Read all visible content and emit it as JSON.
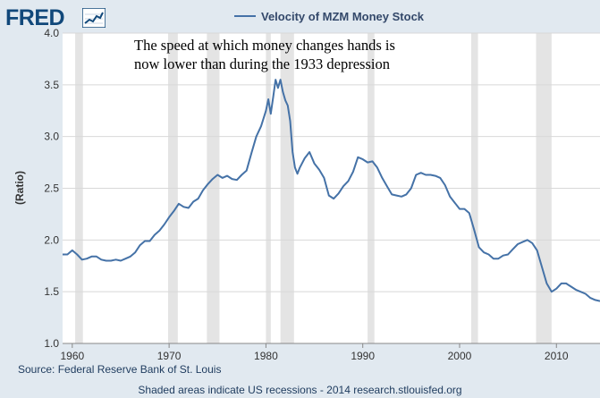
{
  "logo": {
    "text": "FRED",
    "icon": "fred-sparkline-icon"
  },
  "colors": {
    "background": "#e1e9f0",
    "plot_area": "#ffffff",
    "series": "#4572a7",
    "recession": "#e4e4e4",
    "grid": "#d8d8d8",
    "logo": "#11487a"
  },
  "annotation": {
    "line1": "The speed at which money changes hands is",
    "line2": "now lower than during the 1933 depression"
  },
  "source": "Source: Federal Reserve Bank of St. Louis",
  "footnote": "Shaded areas indicate US recessions - 2014 research.stlouisfed.org",
  "chart_data": {
    "type": "line",
    "title": "",
    "xlabel": "",
    "ylabel": "(Ratio)",
    "xlim": [
      1959.0,
      2014.5
    ],
    "ylim": [
      1.0,
      4.0
    ],
    "y_ticks": [
      "1.0",
      "1.5",
      "2.0",
      "2.5",
      "3.0",
      "3.5",
      "4.0"
    ],
    "x_ticks": [
      "1960",
      "1970",
      "1980",
      "1990",
      "2000",
      "2010"
    ],
    "grid": true,
    "legend": "top-center",
    "recessions": [
      [
        1960.3,
        1961.1
      ],
      [
        1969.9,
        1970.9
      ],
      [
        1973.9,
        1975.2
      ],
      [
        1980.0,
        1980.5
      ],
      [
        1981.5,
        1982.9
      ],
      [
        1990.5,
        1991.2
      ],
      [
        2001.2,
        2001.9
      ],
      [
        2007.9,
        2009.5
      ]
    ],
    "series": [
      {
        "name": "Velocity of MZM Money Stock",
        "x": [
          1959.0,
          1959.5,
          1960.0,
          1960.5,
          1961.0,
          1961.5,
          1962.0,
          1962.5,
          1963.0,
          1963.5,
          1964.0,
          1964.5,
          1965.0,
          1965.5,
          1966.0,
          1966.5,
          1967.0,
          1967.5,
          1968.0,
          1968.5,
          1969.0,
          1969.5,
          1970.0,
          1970.5,
          1971.0,
          1971.5,
          1972.0,
          1972.5,
          1973.0,
          1973.5,
          1974.0,
          1974.5,
          1975.0,
          1975.5,
          1976.0,
          1976.5,
          1977.0,
          1977.5,
          1978.0,
          1978.5,
          1979.0,
          1979.5,
          1980.0,
          1980.25,
          1980.5,
          1980.75,
          1981.0,
          1981.25,
          1981.5,
          1981.75,
          1982.0,
          1982.25,
          1982.5,
          1982.75,
          1983.0,
          1983.25,
          1983.5,
          1984.0,
          1984.5,
          1985.0,
          1985.5,
          1986.0,
          1986.5,
          1987.0,
          1987.5,
          1988.0,
          1988.5,
          1989.0,
          1989.5,
          1990.0,
          1990.5,
          1991.0,
          1991.5,
          1992.0,
          1992.5,
          1993.0,
          1993.5,
          1994.0,
          1994.5,
          1995.0,
          1995.5,
          1996.0,
          1996.5,
          1997.0,
          1997.5,
          1998.0,
          1998.5,
          1999.0,
          1999.5,
          2000.0,
          2000.5,
          2001.0,
          2001.5,
          2002.0,
          2002.5,
          2003.0,
          2003.5,
          2004.0,
          2004.5,
          2005.0,
          2005.5,
          2006.0,
          2006.5,
          2007.0,
          2007.5,
          2008.0,
          2008.5,
          2009.0,
          2009.5,
          2010.0,
          2010.5,
          2011.0,
          2011.5,
          2012.0,
          2012.5,
          2013.0,
          2013.5,
          2014.0,
          2014.5
        ],
        "y": [
          1.86,
          1.86,
          1.9,
          1.86,
          1.81,
          1.82,
          1.84,
          1.84,
          1.81,
          1.8,
          1.8,
          1.81,
          1.8,
          1.82,
          1.84,
          1.88,
          1.95,
          1.99,
          1.99,
          2.05,
          2.09,
          2.15,
          2.22,
          2.28,
          2.35,
          2.32,
          2.31,
          2.37,
          2.4,
          2.48,
          2.54,
          2.59,
          2.63,
          2.6,
          2.62,
          2.59,
          2.58,
          2.63,
          2.67,
          2.84,
          3.0,
          3.1,
          3.25,
          3.36,
          3.22,
          3.38,
          3.55,
          3.47,
          3.55,
          3.43,
          3.35,
          3.3,
          3.15,
          2.85,
          2.7,
          2.64,
          2.7,
          2.79,
          2.85,
          2.74,
          2.68,
          2.6,
          2.43,
          2.4,
          2.45,
          2.52,
          2.57,
          2.66,
          2.8,
          2.78,
          2.75,
          2.76,
          2.7,
          2.6,
          2.52,
          2.44,
          2.43,
          2.42,
          2.44,
          2.5,
          2.63,
          2.65,
          2.63,
          2.63,
          2.62,
          2.6,
          2.53,
          2.42,
          2.36,
          2.3,
          2.3,
          2.26,
          2.1,
          1.93,
          1.88,
          1.86,
          1.82,
          1.82,
          1.85,
          1.86,
          1.91,
          1.96,
          1.98,
          2.0,
          1.97,
          1.9,
          1.74,
          1.58,
          1.5,
          1.53,
          1.58,
          1.58,
          1.55,
          1.52,
          1.5,
          1.48,
          1.44,
          1.42,
          1.41
        ]
      }
    ]
  }
}
